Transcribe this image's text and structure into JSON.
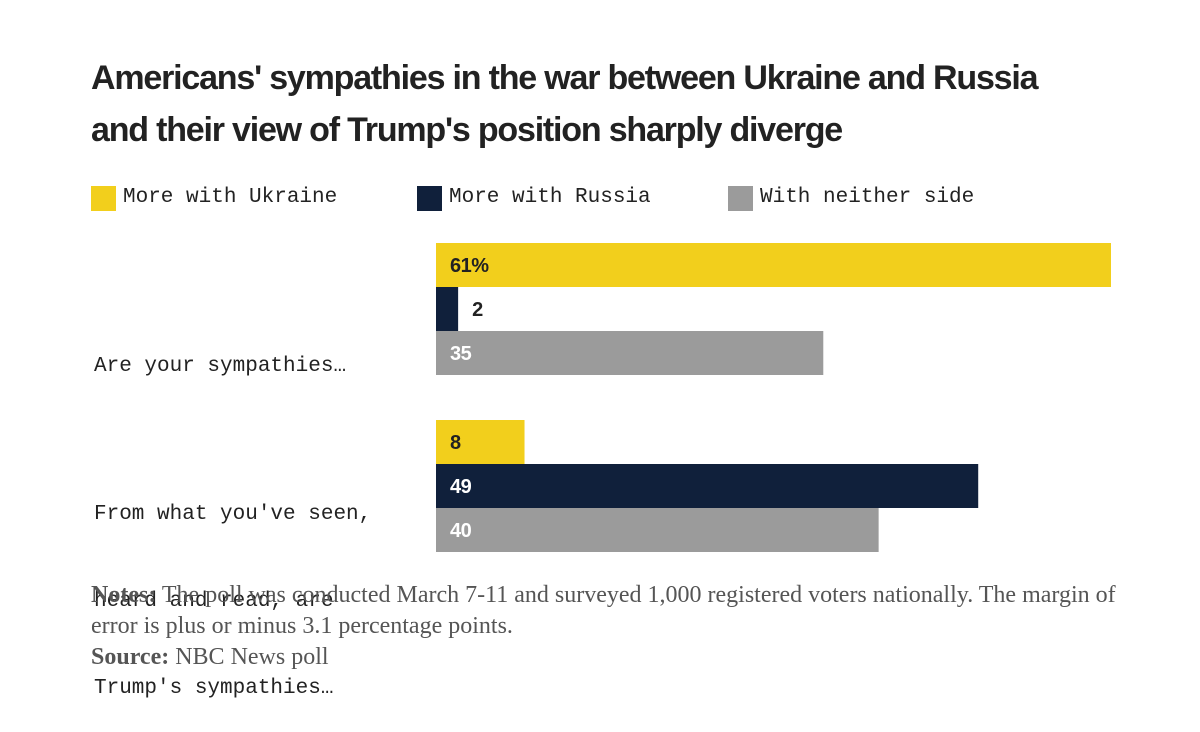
{
  "title_lines": [
    "Americans' sympathies in the war between Ukraine and Russia",
    "and their view of Trump's position sharply diverge"
  ],
  "colors": {
    "ukraine": "#F2CF1C",
    "russia": "#10203B",
    "neither": "#9B9B9B",
    "title": "#222222",
    "notes": "#555555"
  },
  "chart_data": {
    "type": "bar",
    "orientation": "horizontal",
    "title": "Americans' sympathies in the war between Ukraine and Russia and their view of Trump's position sharply diverge",
    "categories": [
      "Are your sympathies…",
      "From what you've seen, heard and read, are Trump's sympathies…"
    ],
    "category_label_lines": [
      [
        "Are your sympathies…"
      ],
      [
        "From what you've seen,",
        "heard and read, are",
        "Trump's sympathies…"
      ]
    ],
    "series": [
      {
        "name": "More with Ukraine",
        "values": [
          61,
          8
        ],
        "labels": [
          "61%",
          "8"
        ]
      },
      {
        "name": "More with Russia",
        "values": [
          2,
          49
        ],
        "labels": [
          "2",
          "49"
        ]
      },
      {
        "name": "With neither side",
        "values": [
          35,
          40
        ],
        "labels": [
          "35",
          "40"
        ]
      }
    ],
    "unit": "%",
    "xlim": [
      0,
      61
    ],
    "grid": false,
    "legend_position": "top-left"
  },
  "notes": {
    "notes_label": "Notes:",
    "notes_text": " The poll was conducted March 7-11 and surveyed 1,000 registered voters nationally. The margin of error is plus or minus 3.1 percentage points.",
    "source_label": "Source:",
    "source_text": " NBC News poll"
  }
}
